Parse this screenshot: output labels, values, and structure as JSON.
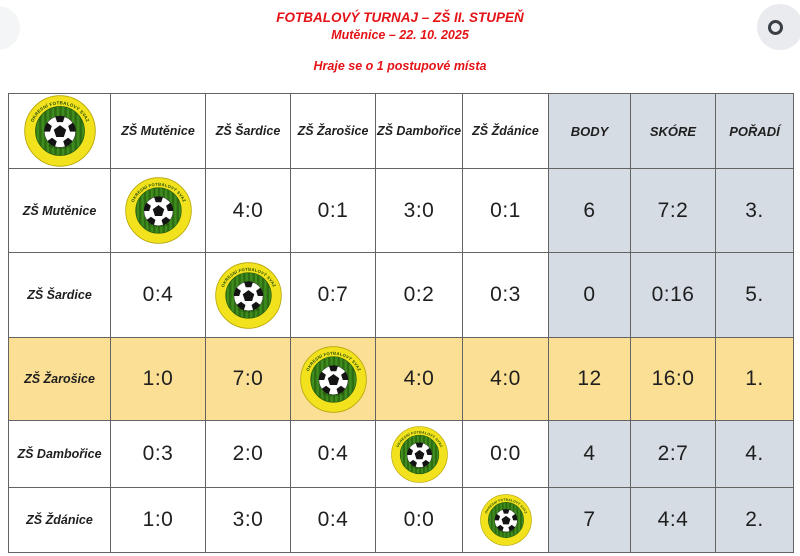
{
  "page": {
    "title_line1": "FOTBALOVÝ TURNAJ – ZŠ II. STUPEŇ",
    "title_line2": "Mutěnice – 22. 10. 2025",
    "subtitle": "Hraje se o 1 postupové místa",
    "title_color": "#e41317"
  },
  "logo": {
    "text_top": "OKRESNÍ FOTBALOVÝ SVAZ",
    "text_bottom": "HODONÍN",
    "outer_color": "#f2e21d",
    "inner_color": "#3f8d1f"
  },
  "colors": {
    "stat_column_bg": "#d6dce4",
    "highlight_row_bg": "#fbdf94",
    "grid_border": "#636363"
  },
  "table": {
    "columns": [
      "ZŠ Mutěnice",
      "ZŠ Šardice",
      "ZŠ Žarošice",
      "ZŠ Dambořice",
      "ZŠ Ždánice",
      "BODY",
      "SKÓRE",
      "POŘADÍ"
    ],
    "rows": [
      {
        "team": "ZŠ Mutěnice",
        "results": [
          "logo",
          "4:0",
          "0:1",
          "3:0",
          "0:1"
        ],
        "body": "6",
        "skore": "7:2",
        "poradi": "3.",
        "highlight": false
      },
      {
        "team": "ZŠ Šardice",
        "results": [
          "0:4",
          "logo",
          "0:7",
          "0:2",
          "0:3"
        ],
        "body": "0",
        "skore": "0:16",
        "poradi": "5.",
        "highlight": false
      },
      {
        "team": "ZŠ Žarošice",
        "results": [
          "1:0",
          "7:0",
          "logo",
          "4:0",
          "4:0"
        ],
        "body": "12",
        "skore": "16:0",
        "poradi": "1.",
        "highlight": true
      },
      {
        "team": "ZŠ Dambořice",
        "results": [
          "0:3",
          "2:0",
          "0:4",
          "logo",
          "0:0"
        ],
        "body": "4",
        "skore": "2:7",
        "poradi": "4.",
        "highlight": false
      },
      {
        "team": "ZŠ Ždánice",
        "results": [
          "1:0",
          "3:0",
          "0:4",
          "0:0",
          "logo"
        ],
        "body": "7",
        "skore": "4:4",
        "poradi": "2.",
        "highlight": false
      }
    ]
  }
}
